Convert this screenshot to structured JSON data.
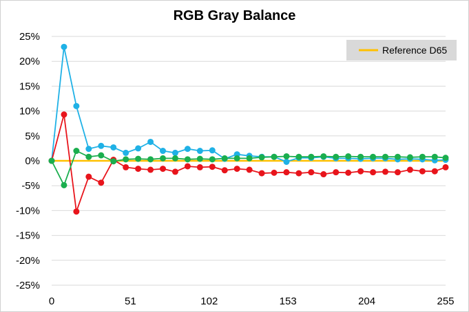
{
  "chart_data": {
    "type": "line",
    "title": "RGB Gray Balance",
    "xlabel": "",
    "ylabel": "",
    "xlim": [
      0,
      255
    ],
    "ylim": [
      -25,
      25
    ],
    "x_ticks": [
      "0",
      "51",
      "102",
      "153",
      "204",
      "255"
    ],
    "x_tick_values": [
      0,
      51,
      102,
      153,
      204,
      255
    ],
    "y_ticks": [
      "25%",
      "20%",
      "15%",
      "10%",
      "5%",
      "0%",
      "-5%",
      "-10%",
      "-15%",
      "-20%",
      "-25%"
    ],
    "y_tick_values": [
      25,
      20,
      15,
      10,
      5,
      0,
      -5,
      -10,
      -15,
      -20,
      -25
    ],
    "grid": "horizontal",
    "legend_position": "top-right",
    "legend": [
      {
        "name": "Reference D65",
        "color": "#FFC000"
      }
    ],
    "reference": {
      "name": "Reference D65",
      "value": 0,
      "color": "#FFC000"
    },
    "x": [
      0,
      8,
      16,
      24,
      32,
      40,
      48,
      56,
      64,
      72,
      80,
      88,
      96,
      104,
      112,
      120,
      128,
      136,
      144,
      152,
      160,
      168,
      176,
      184,
      192,
      200,
      208,
      216,
      224,
      232,
      240,
      248,
      255
    ],
    "series": [
      {
        "color": "#1FB1E6",
        "values": [
          0,
          22.9,
          11.0,
          2.4,
          3.0,
          2.7,
          1.6,
          2.5,
          3.8,
          2.0,
          1.6,
          2.4,
          2.0,
          2.1,
          0.4,
          1.3,
          1.0,
          0.8,
          0.8,
          -0.2,
          0.6,
          0.6,
          0.8,
          0.5,
          0.5,
          0.4,
          0.5,
          0.5,
          0.3,
          0.4,
          0.3,
          0.1,
          0.2
        ]
      },
      {
        "color": "#E8141B",
        "values": [
          0,
          9.3,
          -10.2,
          -3.2,
          -4.4,
          0.2,
          -1.3,
          -1.6,
          -1.8,
          -1.6,
          -2.2,
          -1.1,
          -1.3,
          -1.2,
          -1.9,
          -1.6,
          -1.8,
          -2.5,
          -2.4,
          -2.3,
          -2.5,
          -2.3,
          -2.7,
          -2.3,
          -2.4,
          -2.1,
          -2.3,
          -2.2,
          -2.3,
          -1.8,
          -2.1,
          -2.1,
          -1.3
        ]
      },
      {
        "color": "#1AAE4E",
        "values": [
          0,
          -4.9,
          2.0,
          0.8,
          1.1,
          -0.1,
          0.3,
          0.4,
          0.3,
          0.5,
          0.5,
          0.3,
          0.4,
          0.3,
          0.5,
          0.5,
          0.5,
          0.7,
          0.8,
          0.9,
          0.8,
          0.8,
          0.9,
          0.8,
          0.9,
          0.8,
          0.8,
          0.8,
          0.8,
          0.7,
          0.8,
          0.8,
          0.6
        ]
      }
    ]
  }
}
